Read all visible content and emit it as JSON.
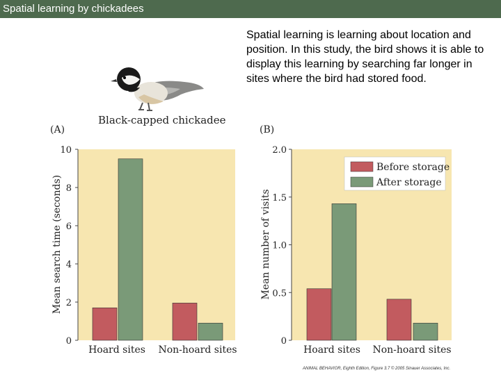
{
  "header": {
    "title": "Spatial learning by chickadees"
  },
  "description": "Spatial learning is learning about location and position.  In this study, the bird shows it is able to display this learning by searching far longer in sites where the bird had stored food.",
  "bird": {
    "caption": "Black-capped chickadee"
  },
  "credit": "ANIMAL BEHAVIOR, Eighth Edition, Figure 3.7  © 2005 Sinauer Associates, Inc.",
  "colors": {
    "before": "#c25b5f",
    "after": "#7a9a78",
    "panel_bg": "#f7e6b0",
    "titlebar": "#4e6a4e"
  },
  "chart_data": [
    {
      "type": "bar",
      "panel_label": "(A)",
      "categories": [
        "Hoard sites",
        "Non-hoard sites"
      ],
      "series": [
        {
          "name": "Before storage",
          "values": [
            1.7,
            1.95
          ]
        },
        {
          "name": "After storage",
          "values": [
            9.5,
            0.9
          ]
        }
      ],
      "ylabel": "Mean search time (seconds)",
      "ylim": [
        0,
        10
      ],
      "yticks": [
        "0",
        "2",
        "4",
        "6",
        "8",
        "10"
      ],
      "yticks_values": [
        0,
        2,
        4,
        6,
        8,
        10
      ],
      "grid": false
    },
    {
      "type": "bar",
      "panel_label": "(B)",
      "categories": [
        "Hoard sites",
        "Non-hoard sites"
      ],
      "series": [
        {
          "name": "Before storage",
          "values": [
            0.54,
            0.43
          ]
        },
        {
          "name": "After storage",
          "values": [
            1.43,
            0.18
          ]
        }
      ],
      "ylabel": "Mean number of visits",
      "ylim": [
        0,
        2.0
      ],
      "yticks": [
        "0",
        "0.5",
        "1.0",
        "1.5",
        "2.0"
      ],
      "yticks_values": [
        0,
        0.5,
        1.0,
        1.5,
        2.0
      ],
      "legend": [
        "Before storage",
        "After storage"
      ],
      "legend_position": "top-right",
      "grid": false
    }
  ]
}
